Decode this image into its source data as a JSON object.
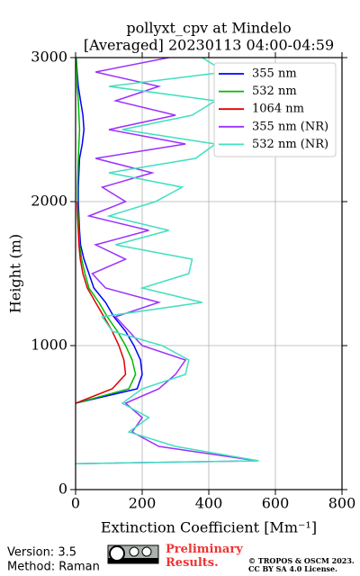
{
  "chart_data": {
    "type": "line",
    "title": "pollyxt_cpv at Mindelo",
    "subtitle": "[Averaged] 20230113 04:00-04:59",
    "xlabel": "Extinction Coefficient [Mm⁻¹]",
    "ylabel": "Height (m)",
    "y": [
      180,
      200,
      300,
      400,
      500,
      600,
      700,
      800,
      900,
      1000,
      1100,
      1200,
      1300,
      1400,
      1500,
      1600,
      1700,
      1800,
      1900,
      2000,
      2100,
      2200,
      2300,
      2400,
      2500,
      2600,
      2700,
      2800,
      2900,
      3000
    ],
    "series": [
      {
        "name": "355 nm",
        "color": "#0000ff",
        "values": [
          null,
          null,
          null,
          null,
          null,
          0,
          185,
          200,
          195,
          175,
          150,
          115,
          90,
          55,
          40,
          25,
          15,
          12,
          10,
          8,
          8,
          10,
          12,
          20,
          25,
          22,
          15,
          8,
          5,
          2
        ]
      },
      {
        "name": "532 nm",
        "color": "#00bb00",
        "values": [
          null,
          null,
          null,
          null,
          null,
          0,
          160,
          180,
          170,
          150,
          125,
          95,
          70,
          40,
          28,
          18,
          12,
          10,
          8,
          6,
          6,
          7,
          8,
          10,
          12,
          10,
          8,
          5,
          4,
          2
        ]
      },
      {
        "name": "1064 nm",
        "color": "#e00000",
        "values": [
          null,
          null,
          null,
          null,
          null,
          0,
          110,
          150,
          145,
          130,
          110,
          85,
          60,
          35,
          22,
          14,
          10,
          8,
          6,
          5,
          null,
          null,
          null,
          null,
          null,
          null,
          null,
          null,
          null,
          null
        ]
      },
      {
        "name": "355 nm (NR)",
        "color": "#9b30ff",
        "values": [
          0,
          545,
          250,
          170,
          200,
          150,
          250,
          300,
          330,
          200,
          160,
          120,
          250,
          90,
          50,
          150,
          60,
          220,
          40,
          150,
          80,
          230,
          60,
          330,
          100,
          300,
          120,
          250,
          60,
          280
        ]
      },
      {
        "name": "532 nm (NR)",
        "color": "#40e0c0",
        "values": [
          0,
          550,
          300,
          160,
          220,
          140,
          200,
          330,
          340,
          260,
          110,
          80,
          380,
          200,
          340,
          350,
          120,
          280,
          100,
          240,
          320,
          100,
          360,
          420,
          140,
          350,
          420,
          100,
          450,
          380
        ]
      }
    ],
    "xlim": [
      0,
      800
    ],
    "xticks": [
      0,
      200,
      400,
      600,
      800
    ],
    "ylim": [
      0,
      3000
    ],
    "yticks": [
      0,
      1000,
      2000,
      3000
    ],
    "grid": true,
    "legend": "upper right"
  },
  "footer": {
    "version": "Version: 3.5",
    "method": "Method: Raman",
    "notice": "Preliminary Results.",
    "copyright": "© TROPOS & OSCM 2023.",
    "license": "CC BY SA 4.0 License."
  }
}
